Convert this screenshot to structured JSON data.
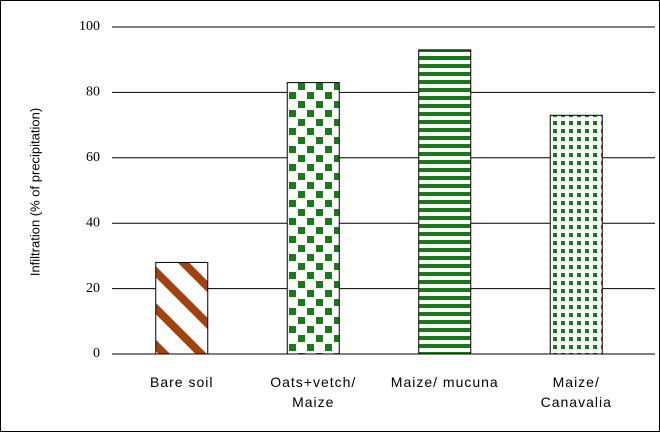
{
  "chart_data": {
    "type": "bar",
    "y_label": "Infiltration (% of precipitation)",
    "categories": [
      "Bare soil",
      "Oats+vetch/\nMaize",
      "Maize/ mucuna",
      "Maize/\nCanavalia"
    ],
    "values": [
      28,
      83,
      93,
      73
    ],
    "colors": [
      "#a3410f",
      "#1a7a1a",
      "#1a7a1a",
      "#1a7a1a"
    ],
    "ylim": [
      0,
      100
    ],
    "yticks": [
      0,
      20,
      40,
      60,
      80,
      100
    ],
    "grid": true
  }
}
